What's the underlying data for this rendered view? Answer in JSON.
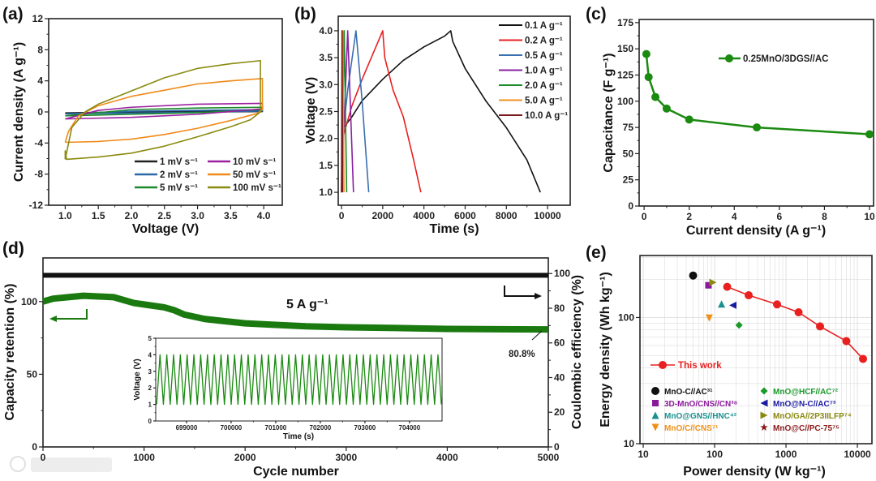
{
  "watermark": "大数跨境",
  "chart_data": [
    {
      "id": "a",
      "panel_label": "(a)",
      "type": "line",
      "xlabel": "Voltage (V)",
      "ylabel": "Current density (A g⁻¹)",
      "xlim": [
        0.75,
        4.28
      ],
      "ylim": [
        -12,
        12
      ],
      "xticks": [
        1.0,
        1.5,
        2.0,
        2.5,
        3.0,
        3.5,
        4.0
      ],
      "xtick_labels": [
        "1.0",
        "1.5",
        "2.0",
        "2.5",
        "3.0",
        "3.5",
        "4.0"
      ],
      "yticks": [
        -12,
        -8,
        -4,
        0,
        4,
        8,
        12
      ],
      "ytick_labels": [
        "-12",
        "-8",
        "-4",
        "0",
        "4",
        "8",
        "12"
      ],
      "legend_position": "bottom-right",
      "series": [
        {
          "name": "1 mV s⁻¹",
          "color": "#222222",
          "points": [
            [
              1.0,
              -0.12
            ],
            [
              2,
              0.02
            ],
            [
              3,
              0.08
            ],
            [
              3.98,
              0.12
            ],
            [
              3.98,
              0.05
            ],
            [
              3,
              -0.02
            ],
            [
              2,
              -0.08
            ],
            [
              1.0,
              -0.12
            ]
          ]
        },
        {
          "name": "2 mV s⁻¹",
          "color": "#2a6aa8",
          "points": [
            [
              1.0,
              -0.25
            ],
            [
              2,
              0.1
            ],
            [
              3,
              0.2
            ],
            [
              3.98,
              0.3
            ],
            [
              3.98,
              0.12
            ],
            [
              3,
              -0.05
            ],
            [
              2,
              -0.15
            ],
            [
              1.0,
              -0.25
            ]
          ]
        },
        {
          "name": "5 mV s⁻¹",
          "color": "#1a8a2a",
          "points": [
            [
              1.0,
              -0.5
            ],
            [
              2,
              0.3
            ],
            [
              3,
              0.5
            ],
            [
              3.98,
              0.6
            ],
            [
              3.98,
              0.3
            ],
            [
              3,
              -0.1
            ],
            [
              2,
              -0.3
            ],
            [
              1.0,
              -0.5
            ]
          ]
        },
        {
          "name": "10 mV s⁻¹",
          "color": "#9b1fa0",
          "points": [
            [
              1.0,
              -0.9
            ],
            [
              1.5,
              0.2
            ],
            [
              2,
              0.6
            ],
            [
              3,
              1.0
            ],
            [
              3.98,
              1.1
            ],
            [
              3.98,
              0.4
            ],
            [
              3,
              -0.3
            ],
            [
              2,
              -0.7
            ],
            [
              1.0,
              -0.9
            ]
          ]
        },
        {
          "name": "50 mV s⁻¹",
          "color": "#f08a1a",
          "points": [
            [
              1.0,
              -3.9
            ],
            [
              1.05,
              -2.5
            ],
            [
              1.2,
              -0.5
            ],
            [
              1.5,
              0.8
            ],
            [
              2.0,
              2.0
            ],
            [
              2.5,
              2.8
            ],
            [
              3.0,
              3.6
            ],
            [
              3.5,
              4.0
            ],
            [
              3.98,
              4.3
            ],
            [
              3.98,
              0.3
            ],
            [
              3.9,
              -0.2
            ],
            [
              3.5,
              -1.1
            ],
            [
              3.0,
              -2.1
            ],
            [
              2.5,
              -2.9
            ],
            [
              2.0,
              -3.5
            ],
            [
              1.5,
              -3.8
            ],
            [
              1.05,
              -3.9
            ],
            [
              1.0,
              -3.9
            ]
          ]
        },
        {
          "name": "100 mV s⁻¹",
          "color": "#8a8a10",
          "points": [
            [
              1.0,
              -6.1
            ],
            [
              1.1,
              -2.0
            ],
            [
              1.3,
              0
            ],
            [
              1.5,
              1.0
            ],
            [
              2.0,
              2.7
            ],
            [
              2.5,
              4.4
            ],
            [
              3.0,
              5.6
            ],
            [
              3.5,
              6.2
            ],
            [
              3.95,
              6.6
            ],
            [
              3.95,
              0
            ],
            [
              3.8,
              -1.0
            ],
            [
              3.5,
              -1.9
            ],
            [
              3.0,
              -3.2
            ],
            [
              2.5,
              -4.4
            ],
            [
              2.0,
              -5.3
            ],
            [
              1.5,
              -5.8
            ],
            [
              1.02,
              -6.1
            ],
            [
              1.0,
              -5.0
            ]
          ]
        }
      ]
    },
    {
      "id": "b",
      "panel_label": "(b)",
      "type": "line",
      "xlabel": "Time (s)",
      "ylabel": "Voltage (V)",
      "xlim": [
        -160,
        11100
      ],
      "ylim": [
        0.76,
        4.27
      ],
      "xticks": [
        0,
        2000,
        4000,
        6000,
        8000,
        10000
      ],
      "xtick_labels": [
        "0",
        "2000",
        "4000",
        "6000",
        "8000",
        "10000"
      ],
      "yticks": [
        1.0,
        1.5,
        2.0,
        2.5,
        3.0,
        3.5,
        4.0
      ],
      "ytick_labels": [
        "1.0",
        "1.5",
        "2.0",
        "2.5",
        "3.0",
        "3.5",
        "4.0"
      ],
      "legend_position": "top-right",
      "series": [
        {
          "name": "0.1 A g⁻¹",
          "color": "#111111",
          "points": [
            [
              0,
              1.0
            ],
            [
              100,
              2.2
            ],
            [
              500,
              2.4
            ],
            [
              1000,
              2.7
            ],
            [
              2000,
              3.1
            ],
            [
              3000,
              3.45
            ],
            [
              4000,
              3.7
            ],
            [
              5000,
              3.9
            ],
            [
              5300,
              4.0
            ],
            [
              5400,
              3.8
            ],
            [
              6000,
              3.3
            ],
            [
              7000,
              2.7
            ],
            [
              8000,
              2.2
            ],
            [
              9000,
              1.6
            ],
            [
              9650,
              1.0
            ]
          ]
        },
        {
          "name": "0.2 A g⁻¹",
          "color": "#e82020",
          "points": [
            [
              0,
              1.0
            ],
            [
              50,
              2.0
            ],
            [
              500,
              2.6
            ],
            [
              1000,
              3.1
            ],
            [
              1500,
              3.55
            ],
            [
              2000,
              4.0
            ],
            [
              2100,
              3.5
            ],
            [
              2500,
              2.9
            ],
            [
              3000,
              2.4
            ],
            [
              3500,
              1.6
            ],
            [
              3850,
              1.0
            ]
          ]
        },
        {
          "name": "0.5 A g⁻¹",
          "color": "#3a6fb0",
          "points": [
            [
              0,
              1.0
            ],
            [
              20,
              1.9
            ],
            [
              300,
              2.9
            ],
            [
              700,
              4.0
            ],
            [
              1000,
              2.7
            ],
            [
              1320,
              1.0
            ]
          ]
        },
        {
          "name": "1.0 A g⁻¹",
          "color": "#8a20a0",
          "points": [
            [
              0,
              1.0
            ],
            [
              300,
              4.0
            ],
            [
              580,
              1.0
            ]
          ]
        },
        {
          "name": "2.0 A g⁻¹",
          "color": "#1a8a2a",
          "points": [
            [
              0,
              1.0
            ],
            [
              130,
              4.0
            ],
            [
              250,
              1.0
            ]
          ]
        },
        {
          "name": "5.0 A g⁻¹",
          "color": "#f09020",
          "points": [
            [
              0,
              1.0
            ],
            [
              60,
              4.0
            ],
            [
              120,
              1.0
            ]
          ]
        },
        {
          "name": "10.0 A g⁻¹",
          "color": "#7a1a1a",
          "points": [
            [
              0,
              1.0
            ],
            [
              25,
              4.0
            ],
            [
              50,
              1.0
            ]
          ]
        }
      ]
    },
    {
      "id": "c",
      "panel_label": "(c)",
      "type": "line",
      "xlabel": "Current density (A g⁻¹)",
      "ylabel": "Capacitance (F g⁻¹)",
      "xlim": [
        -0.22,
        10.18
      ],
      "ylim": [
        0,
        178
      ],
      "xticks": [
        0,
        2,
        4,
        6,
        8,
        10
      ],
      "xtick_labels": [
        "0",
        "2",
        "4",
        "6",
        "8",
        "10"
      ],
      "yticks": [
        0,
        25,
        50,
        75,
        100,
        125,
        150,
        175
      ],
      "ytick_labels": [
        "0",
        "25",
        "50",
        "75",
        "100",
        "125",
        "150",
        "175"
      ],
      "legend_position": "top-right",
      "series": [
        {
          "name": "0.25MnO/3DGS//AC",
          "color": "#1a8a10",
          "x": [
            0.1,
            0.2,
            0.5,
            1,
            2,
            5,
            10
          ],
          "y": [
            145,
            123,
            104,
            93,
            82.5,
            75,
            68.5
          ]
        }
      ]
    },
    {
      "id": "d",
      "panel_label": "(d)",
      "type": "line",
      "xlabel": "Cycle number",
      "ylabel": "Capacity retention (%)",
      "y2label": "Coulombic efficiency (%)",
      "xlim": [
        0,
        5000
      ],
      "ylim": [
        0,
        130
      ],
      "y2lim": [
        0,
        109
      ],
      "xticks": [
        0,
        1000,
        2000,
        3000,
        4000,
        5000
      ],
      "xtick_labels": [
        "0",
        "1000",
        "2000",
        "3000",
        "4000",
        "5000"
      ],
      "yticks": [
        0,
        50,
        100
      ],
      "ytick_labels": [
        "0",
        "50",
        "100"
      ],
      "y2ticks": [
        0,
        20,
        40,
        60,
        80,
        100
      ],
      "y2tick_labels": [
        "0",
        "20",
        "40",
        "60",
        "80",
        "100"
      ],
      "annotations": {
        "condition": "5 A g⁻¹",
        "final_retention": "80.8%"
      },
      "series": [
        {
          "name": "Capacity retention",
          "axis": "left",
          "color": "#1a7a10",
          "x": [
            0,
            100,
            250,
            400,
            550,
            700,
            800,
            900,
            1050,
            1200,
            1300,
            1400,
            1600,
            1800,
            2000,
            2300,
            2600,
            3000,
            3500,
            4000,
            4500,
            5000
          ],
          "y": [
            100,
            102,
            103,
            104,
            103.5,
            103,
            101,
            99,
            97.5,
            96,
            94,
            91,
            88,
            86.5,
            85,
            84,
            83,
            82.3,
            81.8,
            81.2,
            81,
            80.8
          ]
        },
        {
          "name": "Coulombic efficiency",
          "axis": "right",
          "color": "#111111",
          "x": [
            0,
            1000,
            2000,
            3000,
            4000,
            5000
          ],
          "y": [
            99,
            99,
            99,
            99,
            99,
            99
          ]
        }
      ]
    },
    {
      "id": "d_inset",
      "type": "line",
      "xlabel": "Time (s)",
      "ylabel": "Voltage (V)",
      "xlim": [
        698310,
        704730
      ],
      "ylim": [
        0,
        5
      ],
      "xticks": [
        699000,
        700000,
        701000,
        702000,
        703000,
        704000
      ],
      "xtick_labels": [
        "699000",
        "700000",
        "701000",
        "702000",
        "703000",
        "704000"
      ],
      "yticks": [
        0,
        1,
        2,
        3,
        4,
        5
      ],
      "ytick_labels": [
        "0",
        "1",
        "2",
        "3",
        "4",
        "5"
      ],
      "series": [
        {
          "name": "GCD cycles",
          "color": "#1a8a10",
          "period_s": 152,
          "v_min": 1,
          "v_max": 4,
          "t_start": 698330,
          "t_end": 704720
        }
      ]
    },
    {
      "id": "e",
      "panel_label": "(e)",
      "type": "scatter",
      "xlabel": "Power density (W kg⁻¹)",
      "ylabel": "Energy density (Wh kg⁻¹)",
      "xscale": "log",
      "yscale": "log",
      "xlim": [
        9,
        16000
      ],
      "ylim": [
        10,
        310
      ],
      "grid": true,
      "xticks": [
        10,
        100,
        1000,
        10000
      ],
      "xtick_labels": [
        "10",
        "100",
        "1000",
        "10000"
      ],
      "yticks": [
        10,
        100
      ],
      "ytick_labels": [
        "10",
        "100"
      ],
      "series": [
        {
          "name": "This work",
          "color": "#e82020",
          "marker": "circle",
          "line": true,
          "x": [
            150,
            300,
            750,
            1500,
            3000,
            7000,
            12000
          ],
          "y": [
            175,
            150,
            127,
            110,
            85,
            65,
            47
          ]
        },
        {
          "name": "MnO-C//AC³¹",
          "color": "#111111",
          "marker": "circle",
          "x": [
            50
          ],
          "y": [
            215
          ]
        },
        {
          "name": "3D-MnO/CNS//CN³⁸",
          "color": "#8a1a9a",
          "marker": "square",
          "x": [
            82
          ],
          "y": [
            180
          ]
        },
        {
          "name": "MnO@GNS//HNC⁴²",
          "color": "#1a9090",
          "marker": "triangle-up",
          "x": [
            125
          ],
          "y": [
            128
          ]
        },
        {
          "name": "MnO/C//CNS⁷¹",
          "color": "#f0901a",
          "marker": "triangle-down",
          "x": [
            84
          ],
          "y": [
            99
          ]
        },
        {
          "name": "MnO@HCF//AC⁷²",
          "color": "#1a9a2a",
          "marker": "diamond",
          "x": [
            220
          ],
          "y": [
            87
          ]
        },
        {
          "name": "MnO@N-C//AC⁷³",
          "color": "#1a1aa0",
          "marker": "triangle-left",
          "x": [
            180
          ],
          "y": [
            125
          ]
        },
        {
          "name": "MnO/GA//2P3IILFP⁷⁴",
          "color": "#8a8a10",
          "marker": "triangle-right",
          "x": [
            95
          ],
          "y": [
            190
          ]
        },
        {
          "name": "MnO@C//PC-75⁷⁵",
          "color": "#8a1a1a",
          "marker": "star",
          "x": [],
          "y": []
        }
      ]
    }
  ]
}
